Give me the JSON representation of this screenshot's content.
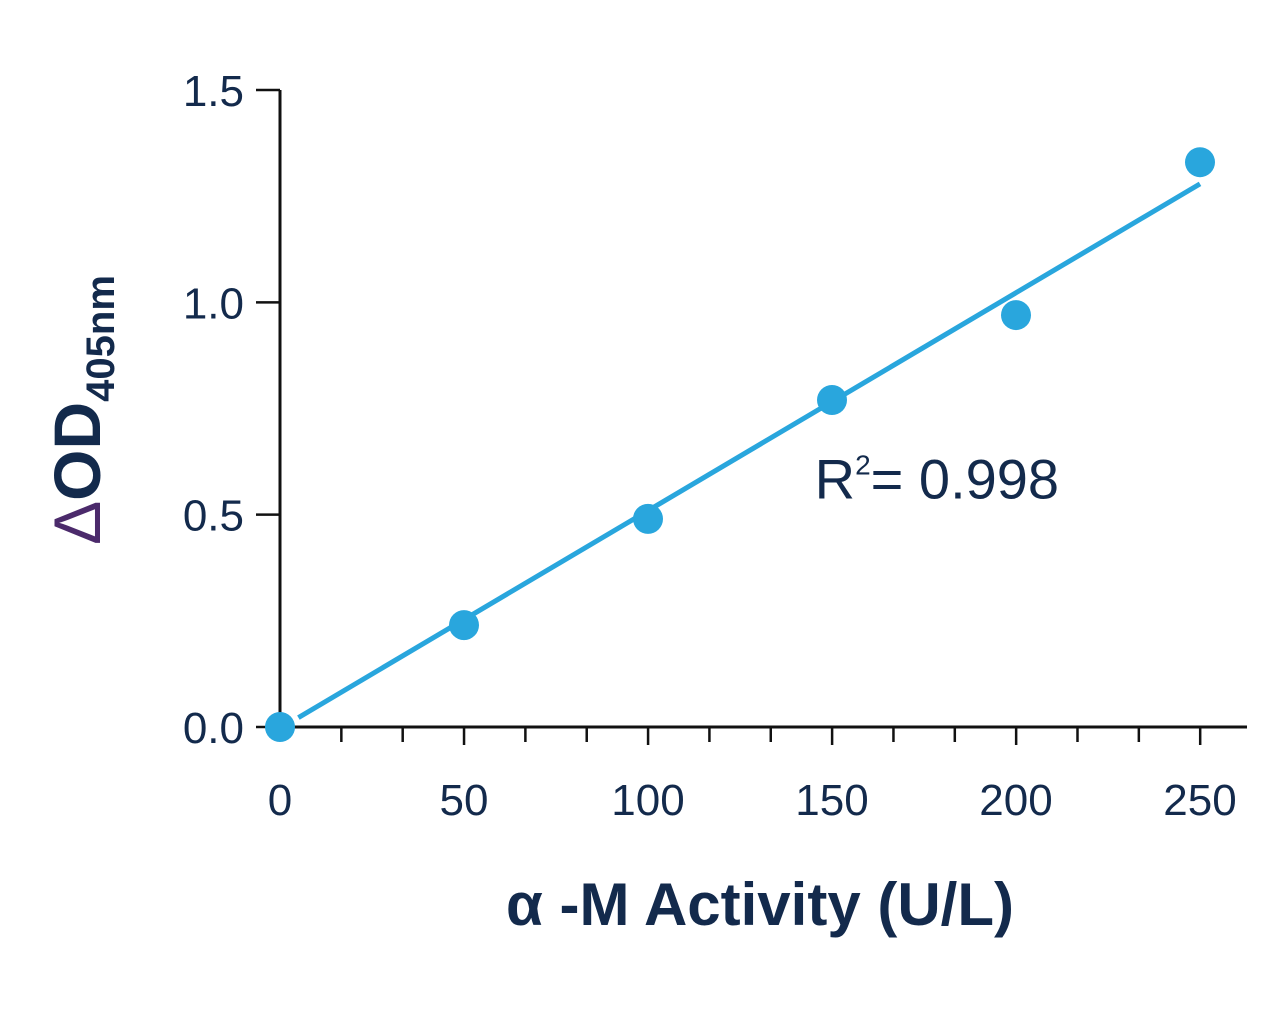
{
  "chart_data": {
    "type": "scatter",
    "xlabel": "α -M Activity (U/L)",
    "ylabel": {
      "symbol": "Δ",
      "main": "OD",
      "subscript": "405nm"
    },
    "xlim": [
      0,
      250
    ],
    "ylim": [
      0,
      1.5
    ],
    "x_ticks": [
      0,
      50,
      100,
      150,
      200,
      250
    ],
    "x_tick_labels": [
      "0",
      "50",
      "100",
      "150",
      "200",
      "250"
    ],
    "x_minor_step": 16.67,
    "y_ticks": [
      0,
      0.5,
      1.0,
      1.5
    ],
    "y_tick_labels": [
      "0.0",
      "0.5",
      "1.0",
      "1.5"
    ],
    "grid": false,
    "legend": "none",
    "series": [
      {
        "x": [
          0,
          50,
          100,
          150,
          200,
          250
        ],
        "y": [
          0.0,
          0.24,
          0.49,
          0.77,
          0.97,
          1.33
        ],
        "color": "#29a6dd"
      }
    ],
    "fit_line": {
      "type": "linear",
      "x_range": [
        5,
        250
      ],
      "slope": 0.00513,
      "intercept": -0.0035,
      "color": "#29a6dd"
    },
    "annotation": {
      "prefix": "R",
      "superscript": "2",
      "text": "= 0.998",
      "x": 148,
      "y": 0.58
    }
  }
}
